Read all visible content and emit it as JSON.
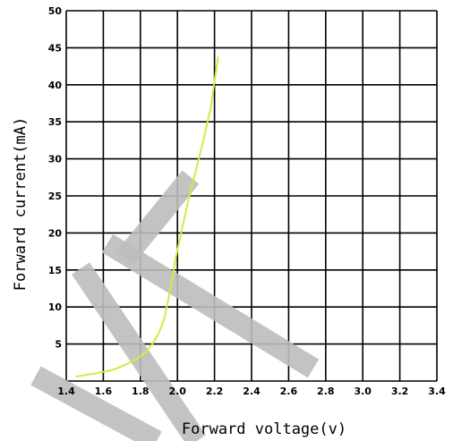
{
  "chart_data": {
    "type": "line",
    "title": "",
    "xlabel": "Forward voltage(v)",
    "ylabel": "Forward current(mA)",
    "xlim": [
      1.4,
      3.4
    ],
    "ylim": [
      0,
      50
    ],
    "x_ticks": [
      "1.4",
      "1.6",
      "1.8",
      "2.0",
      "2.2",
      "2.4",
      "2.6",
      "2.8",
      "3.0",
      "3.2",
      "3.4"
    ],
    "y_ticks": [
      "5",
      "10",
      "15",
      "20",
      "25",
      "30",
      "35",
      "40",
      "45",
      "50"
    ],
    "grid": true,
    "series": [
      {
        "color": "#ccee44",
        "x": [
          1.45,
          1.55,
          1.65,
          1.72,
          1.78,
          1.83,
          1.87,
          1.9,
          1.93,
          1.95,
          1.97,
          1.99,
          2.02,
          2.06,
          2.1,
          2.14,
          2.18,
          2.2,
          2.22
        ],
        "y": [
          0.6,
          1.0,
          1.5,
          2.2,
          3.0,
          3.9,
          5.2,
          6.5,
          8.5,
          11.0,
          13.5,
          16.5,
          20.0,
          24.5,
          28.5,
          32.5,
          37.0,
          40.5,
          43.8
        ]
      }
    ]
  },
  "watermark": {
    "color": "#bdbdbd"
  }
}
